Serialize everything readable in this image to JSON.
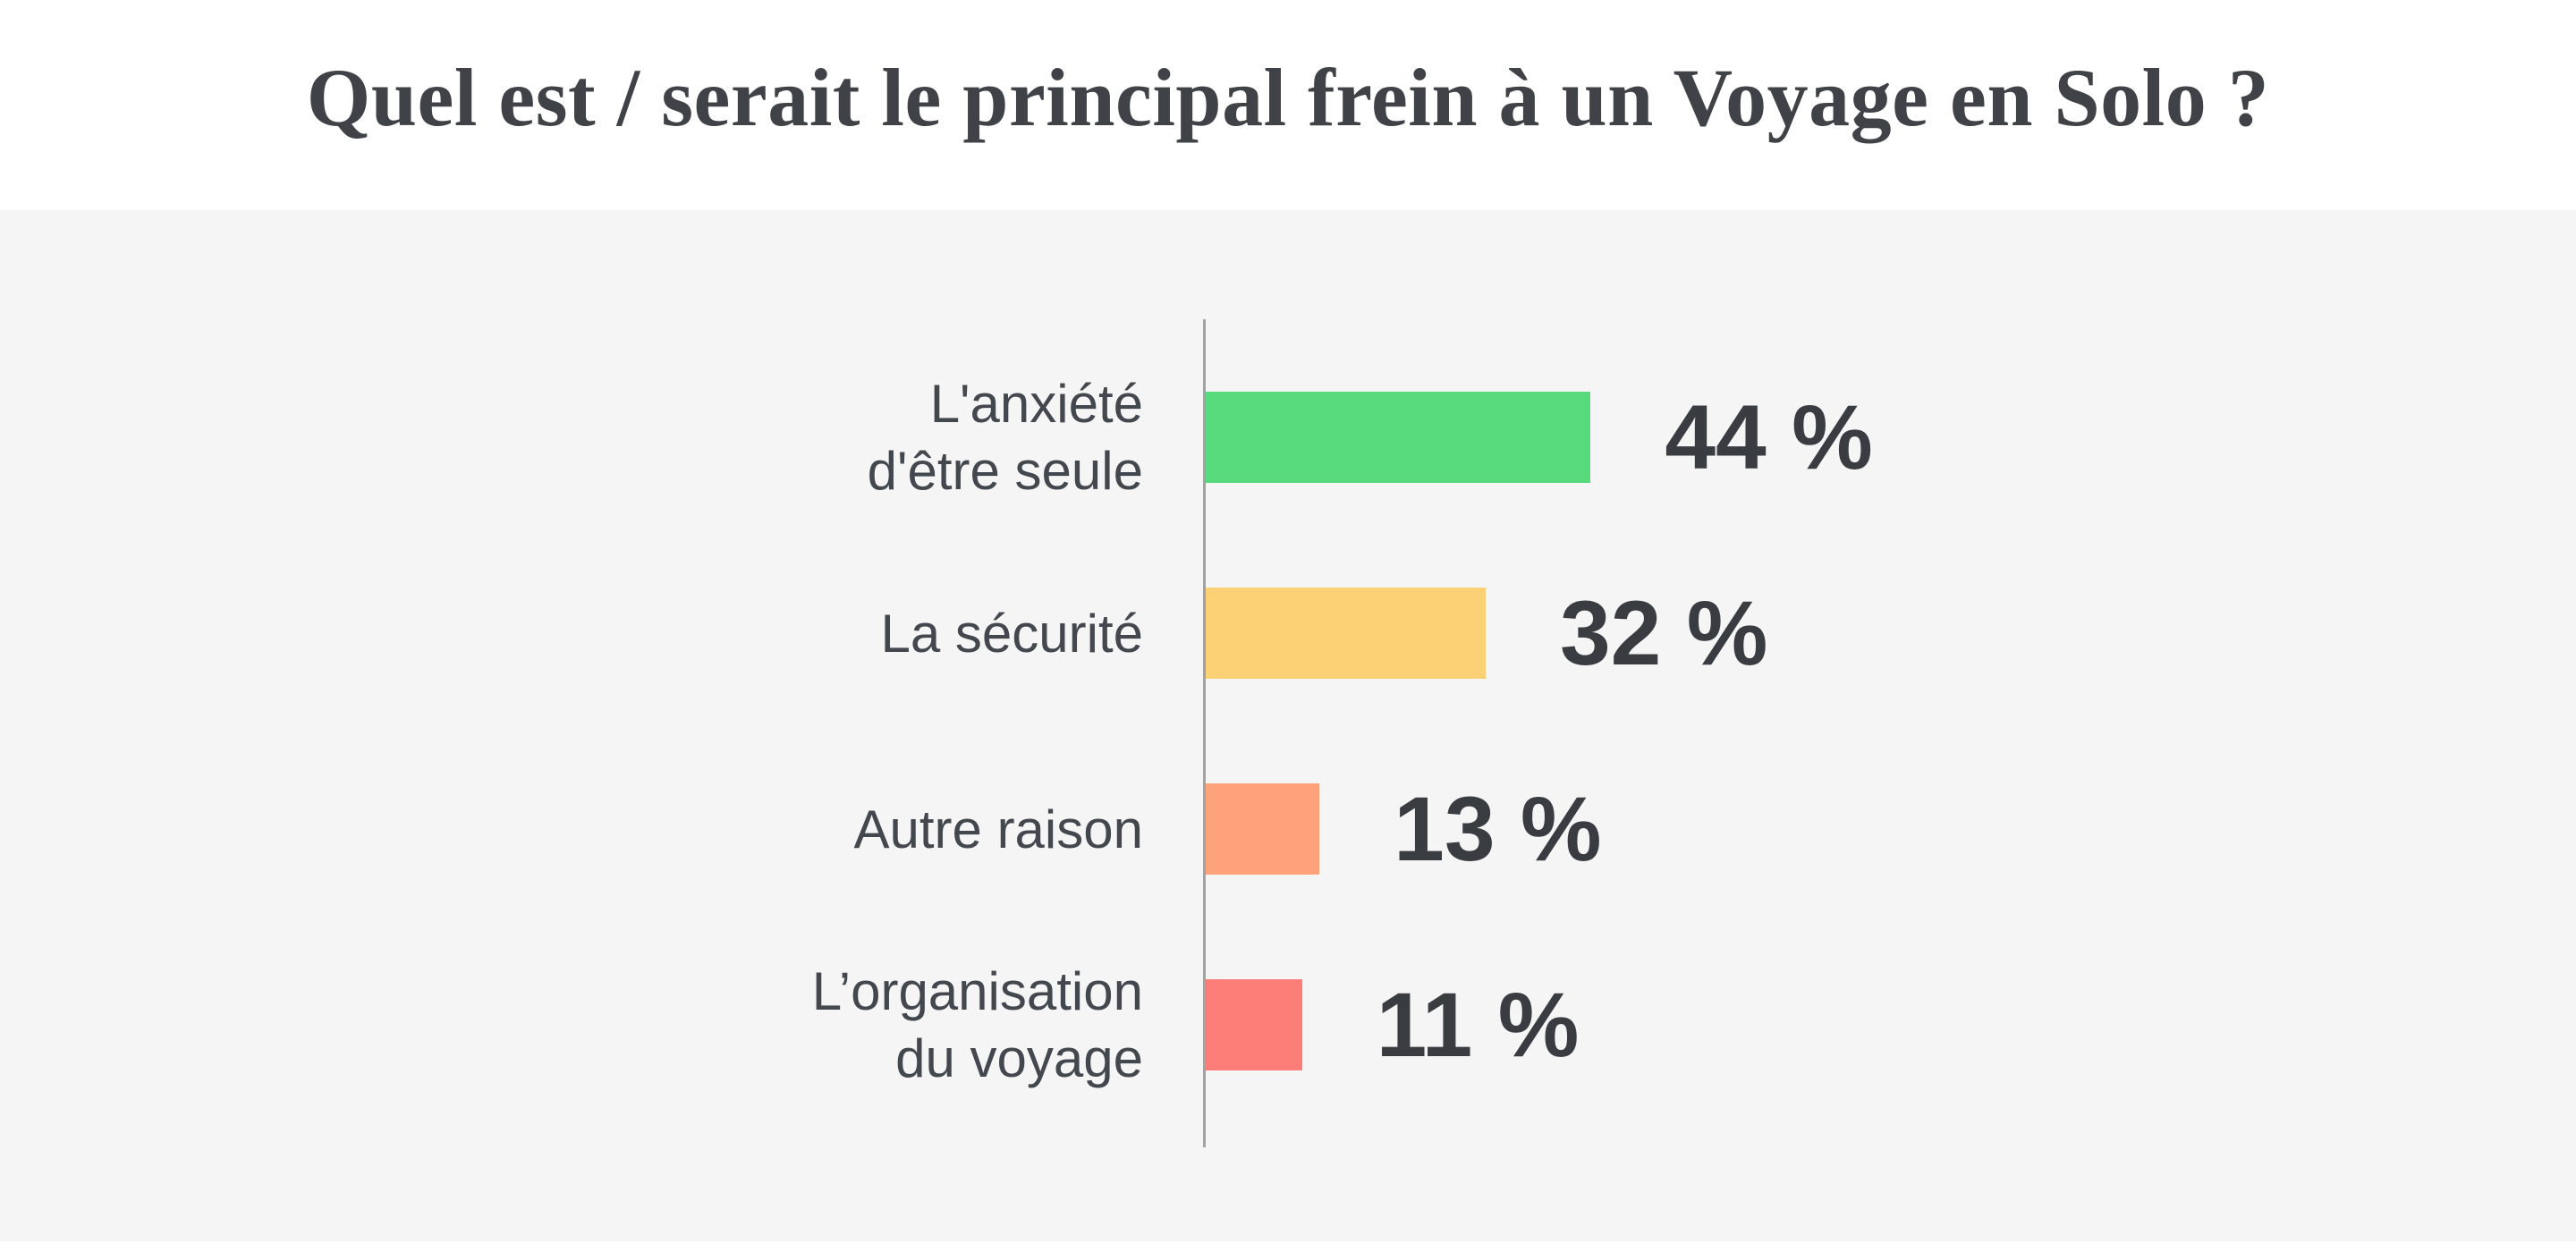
{
  "chart_data": {
    "type": "bar",
    "orientation": "horizontal",
    "title": "Quel est / serait le principal frein à un Voyage en Solo ?",
    "value_unit": "%",
    "xlim": [
      0,
      100
    ],
    "grid": false,
    "legend": false,
    "categories": [
      "L'anxiété d'être seule",
      "La sécurité",
      "Autre raison",
      "L’organisation du voyage"
    ],
    "values": [
      44,
      32,
      13,
      11
    ],
    "rows": [
      {
        "label_lines": [
          "L'anxiété",
          "d'être seule"
        ],
        "value": 44,
        "display": "44 %",
        "color": "#57da7c"
      },
      {
        "label_lines": [
          "La sécurité"
        ],
        "value": 32,
        "display": "32 %",
        "color": "#fcd176"
      },
      {
        "label_lines": [
          "Autre raison"
        ],
        "value": 13,
        "display": "13 %",
        "color": "#fda27b"
      },
      {
        "label_lines": [
          "L’organisation",
          "du voyage"
        ],
        "value": 11,
        "display": "11 %",
        "color": "#fd7e79"
      }
    ],
    "colors": {
      "axis": "#a2a2a2",
      "title_text": "#3f4347",
      "label_text": "#42484e",
      "value_text": "#393d41",
      "header_bg": "#ffffff",
      "body_bg": "#f5f5f6"
    }
  }
}
